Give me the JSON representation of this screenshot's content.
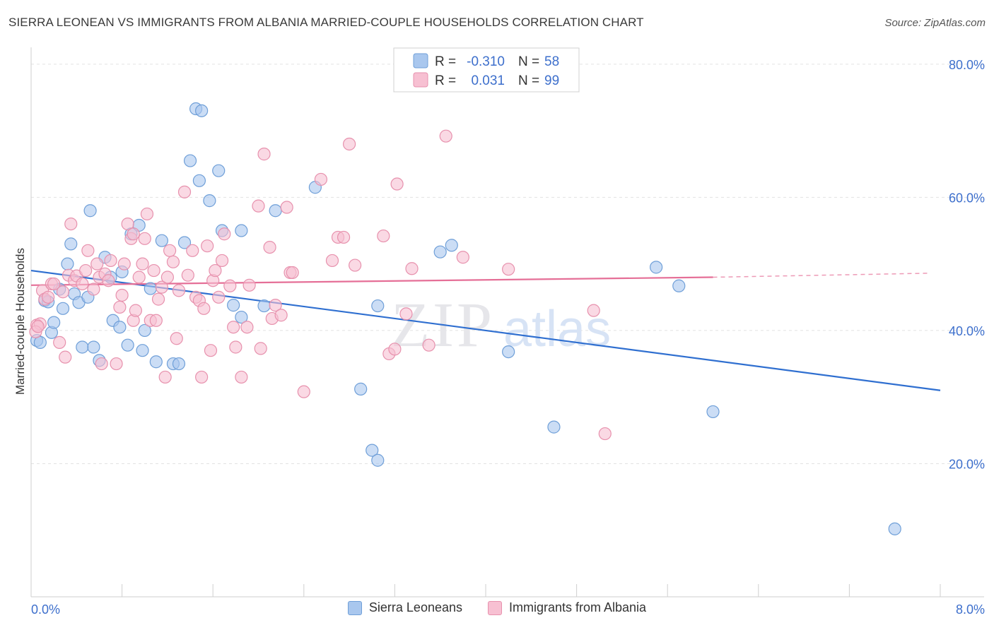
{
  "title": "SIERRA LEONEAN VS IMMIGRANTS FROM ALBANIA MARRIED-COUPLE HOUSEHOLDS CORRELATION CHART",
  "source": "Source: ZipAtlas.com",
  "watermark": {
    "zip": "ZIP",
    "atlas": "atlas"
  },
  "legend_top": {
    "r_label": "R =",
    "n_label": "N =",
    "rows": [
      {
        "r": "-0.310",
        "n": "58"
      },
      {
        "r": "0.031",
        "n": "99"
      }
    ]
  },
  "chart_data": {
    "type": "scatter",
    "title": "SIERRA LEONEAN VS IMMIGRANTS FROM ALBANIA MARRIED-COUPLE HOUSEHOLDS CORRELATION CHART",
    "xlabel": "",
    "ylabel": "Married-couple Households",
    "xlim": [
      0,
      8
    ],
    "ylim": [
      0,
      82
    ],
    "x_tick_labels": [
      "0.0%",
      "8.0%"
    ],
    "y_ticks": [
      20,
      40,
      60,
      80
    ],
    "y_tick_labels": [
      "20.0%",
      "40.0%",
      "60.0%",
      "80.0%"
    ],
    "grid": true,
    "legend_position": "bottom-center",
    "colors": {
      "blue_fill": "#a9c7ee",
      "blue_stroke": "#6f9fd8",
      "blue_line": "#2f6fd0",
      "pink_fill": "#f7c0d2",
      "pink_stroke": "#e791ad",
      "pink_line": "#e56f97",
      "axis_label": "#3d6fcc"
    },
    "series": [
      {
        "name": "Sierra Leoneans",
        "color": "blue",
        "trend": {
          "x": [
            0,
            8
          ],
          "y": [
            49.0,
            31.0
          ],
          "dashed_from": null
        },
        "points": [
          [
            0.05,
            38.5
          ],
          [
            0.08,
            38.2
          ],
          [
            0.12,
            44.5
          ],
          [
            0.15,
            44.3
          ],
          [
            0.18,
            39.7
          ],
          [
            0.2,
            41.2
          ],
          [
            0.25,
            46.2
          ],
          [
            0.28,
            43.3
          ],
          [
            0.32,
            50.0
          ],
          [
            0.35,
            53.0
          ],
          [
            0.38,
            45.5
          ],
          [
            0.42,
            44.2
          ],
          [
            0.45,
            37.5
          ],
          [
            0.5,
            45.0
          ],
          [
            0.52,
            58.0
          ],
          [
            0.55,
            37.5
          ],
          [
            0.6,
            35.5
          ],
          [
            0.65,
            51.0
          ],
          [
            0.7,
            48.0
          ],
          [
            0.72,
            41.5
          ],
          [
            0.78,
            40.5
          ],
          [
            0.8,
            48.8
          ],
          [
            0.85,
            37.8
          ],
          [
            0.88,
            54.5
          ],
          [
            0.95,
            55.8
          ],
          [
            0.98,
            37.0
          ],
          [
            1.0,
            40.0
          ],
          [
            1.05,
            46.3
          ],
          [
            1.1,
            35.3
          ],
          [
            1.15,
            53.5
          ],
          [
            1.25,
            35.0
          ],
          [
            1.3,
            35.0
          ],
          [
            1.35,
            53.2
          ],
          [
            1.4,
            65.5
          ],
          [
            1.45,
            73.3
          ],
          [
            1.48,
            62.5
          ],
          [
            1.5,
            73.0
          ],
          [
            1.57,
            59.5
          ],
          [
            1.65,
            64.0
          ],
          [
            1.68,
            55.0
          ],
          [
            1.78,
            43.8
          ],
          [
            1.85,
            55.0
          ],
          [
            1.85,
            42.0
          ],
          [
            2.05,
            43.7
          ],
          [
            2.15,
            58.0
          ],
          [
            2.5,
            61.5
          ],
          [
            2.9,
            31.2
          ],
          [
            3.0,
            22.0
          ],
          [
            3.05,
            20.5
          ],
          [
            3.05,
            43.7
          ],
          [
            3.6,
            51.8
          ],
          [
            3.7,
            52.8
          ],
          [
            4.2,
            36.8
          ],
          [
            4.6,
            25.5
          ],
          [
            5.5,
            49.5
          ],
          [
            5.7,
            46.7
          ],
          [
            6.0,
            27.8
          ],
          [
            7.6,
            10.2
          ]
        ]
      },
      {
        "name": "Immigrants from Albania",
        "color": "pink",
        "trend": {
          "x": [
            0,
            6
          ],
          "y": [
            46.8,
            48.0
          ],
          "dashed_from": 6,
          "dashed_to": [
            7.9,
            48.6
          ]
        },
        "points": [
          [
            0.05,
            40.8
          ],
          [
            0.08,
            41.0
          ],
          [
            0.1,
            46.0
          ],
          [
            0.12,
            44.7
          ],
          [
            0.15,
            45.0
          ],
          [
            0.18,
            47.0
          ],
          [
            0.2,
            47.0
          ],
          [
            0.25,
            38.2
          ],
          [
            0.28,
            45.8
          ],
          [
            0.3,
            36.0
          ],
          [
            0.33,
            48.3
          ],
          [
            0.35,
            56.0
          ],
          [
            0.38,
            47.5
          ],
          [
            0.4,
            48.2
          ],
          [
            0.45,
            47.0
          ],
          [
            0.48,
            49.0
          ],
          [
            0.5,
            52.0
          ],
          [
            0.55,
            46.2
          ],
          [
            0.58,
            50.0
          ],
          [
            0.6,
            48.0
          ],
          [
            0.62,
            35.0
          ],
          [
            0.65,
            48.5
          ],
          [
            0.68,
            47.5
          ],
          [
            0.7,
            50.5
          ],
          [
            0.75,
            35.0
          ],
          [
            0.78,
            43.5
          ],
          [
            0.8,
            45.3
          ],
          [
            0.82,
            50.0
          ],
          [
            0.85,
            56.0
          ],
          [
            0.88,
            53.8
          ],
          [
            0.9,
            54.5
          ],
          [
            0.9,
            41.5
          ],
          [
            0.92,
            43.0
          ],
          [
            0.95,
            48.0
          ],
          [
            0.98,
            50.0
          ],
          [
            1.0,
            53.8
          ],
          [
            1.02,
            57.5
          ],
          [
            1.05,
            41.5
          ],
          [
            1.08,
            49.0
          ],
          [
            1.1,
            41.5
          ],
          [
            1.12,
            44.7
          ],
          [
            1.15,
            46.5
          ],
          [
            1.18,
            33.0
          ],
          [
            1.2,
            48.0
          ],
          [
            1.22,
            52.0
          ],
          [
            1.25,
            50.3
          ],
          [
            1.28,
            38.8
          ],
          [
            1.3,
            46.0
          ],
          [
            1.35,
            60.8
          ],
          [
            1.38,
            48.3
          ],
          [
            1.42,
            52.0
          ],
          [
            1.45,
            45.0
          ],
          [
            1.48,
            44.5
          ],
          [
            1.5,
            33.0
          ],
          [
            1.52,
            43.3
          ],
          [
            1.55,
            52.7
          ],
          [
            1.58,
            37.0
          ],
          [
            1.6,
            47.5
          ],
          [
            1.62,
            49.0
          ],
          [
            1.65,
            45.0
          ],
          [
            1.68,
            50.5
          ],
          [
            1.7,
            54.5
          ],
          [
            1.75,
            46.7
          ],
          [
            1.78,
            40.5
          ],
          [
            1.8,
            37.5
          ],
          [
            1.85,
            33.0
          ],
          [
            1.9,
            40.5
          ],
          [
            1.92,
            46.8
          ],
          [
            2.0,
            58.7
          ],
          [
            2.02,
            37.3
          ],
          [
            2.05,
            66.5
          ],
          [
            2.1,
            52.5
          ],
          [
            2.12,
            41.8
          ],
          [
            2.15,
            43.8
          ],
          [
            2.2,
            42.3
          ],
          [
            2.25,
            58.5
          ],
          [
            2.28,
            48.7
          ],
          [
            2.3,
            48.7
          ],
          [
            2.4,
            30.8
          ],
          [
            2.55,
            62.7
          ],
          [
            2.65,
            50.5
          ],
          [
            2.7,
            54.0
          ],
          [
            2.75,
            54.0
          ],
          [
            2.8,
            68.0
          ],
          [
            2.85,
            49.8
          ],
          [
            3.1,
            54.2
          ],
          [
            3.15,
            36.5
          ],
          [
            3.2,
            37.2
          ],
          [
            3.22,
            62.0
          ],
          [
            3.3,
            42.5
          ],
          [
            3.35,
            49.3
          ],
          [
            3.5,
            37.8
          ],
          [
            3.65,
            69.2
          ],
          [
            3.8,
            51.0
          ],
          [
            4.2,
            49.2
          ],
          [
            4.95,
            43.0
          ],
          [
            5.05,
            24.5
          ],
          [
            0.04,
            39.8
          ],
          [
            0.06,
            40.6
          ]
        ]
      }
    ]
  }
}
